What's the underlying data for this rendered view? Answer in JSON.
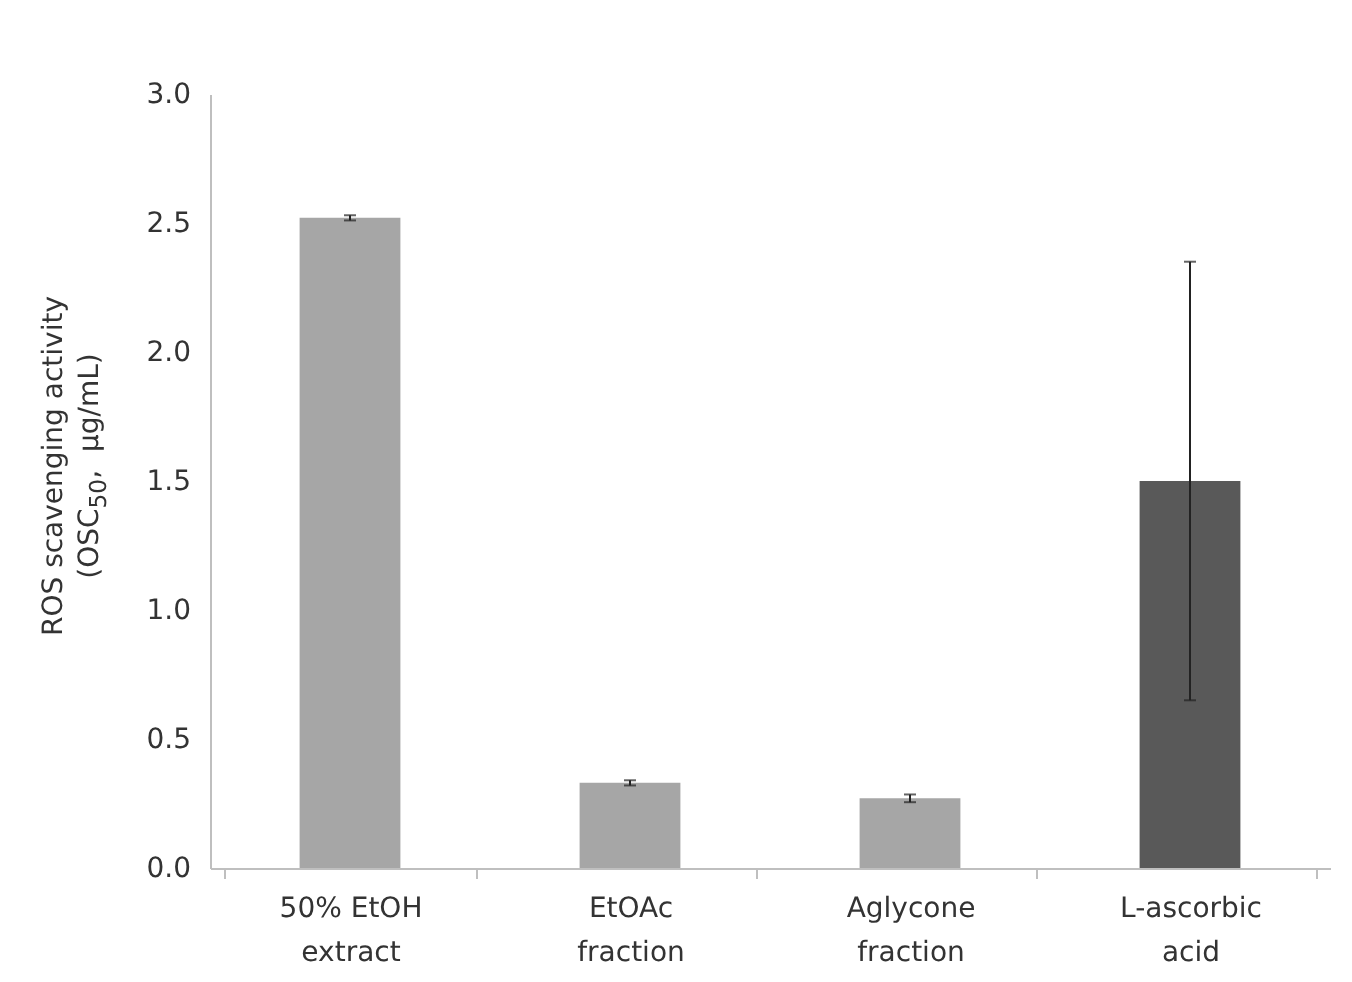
{
  "chart_data": {
    "type": "bar",
    "ylabel": "ROS scavenging activity\n(OSC$_{50}$,  μg/mL)",
    "categories": [
      "50% EtOH extract",
      "EtOAc fraction",
      "Aglycone fraction",
      "L-ascorbic acid"
    ],
    "values": [
      2.52,
      0.33,
      0.27,
      1.5
    ],
    "errors": [
      0.01,
      0.01,
      0.015,
      0.85
    ],
    "colors": [
      "#a6a6a6",
      "#a6a6a6",
      "#a6a6a6",
      "#595959"
    ],
    "ylim": [
      0,
      3.0
    ],
    "yticks": [
      {
        "value": 0,
        "label": "0.0"
      },
      {
        "value": 0.5,
        "label": "0.5"
      },
      {
        "value": 1,
        "label": "1.0"
      },
      {
        "value": 1.5,
        "label": "1.5"
      },
      {
        "value": 2,
        "label": "2.0"
      },
      {
        "value": 2.5,
        "label": "2.5"
      },
      {
        "value": 3,
        "label": "3.0"
      }
    ],
    "grid": false
  }
}
